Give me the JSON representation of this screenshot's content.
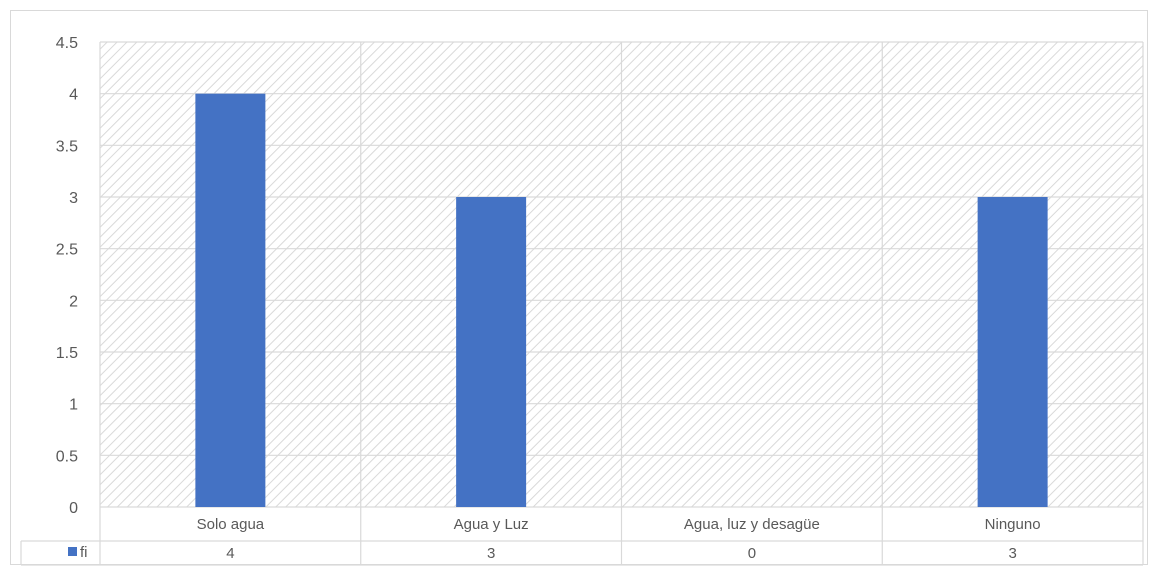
{
  "chart_data": {
    "type": "bar",
    "categories": [
      "Solo agua",
      "Agua y Luz",
      "Agua, luz y desagüe",
      "Ninguno"
    ],
    "series": [
      {
        "name": "fi",
        "values": [
          4,
          3,
          0,
          3
        ],
        "color": "#4472c4"
      }
    ],
    "title": "",
    "xlabel": "",
    "ylabel": "",
    "ylim": [
      0,
      4.5
    ],
    "yticks": [
      "0",
      "0.5",
      "1",
      "1.5",
      "2",
      "2.5",
      "3",
      "3.5",
      "4",
      "4.5"
    ],
    "grid": true,
    "background_pattern": "diagonal-hatch",
    "data_table": {
      "legend_key": "fi",
      "values": [
        "4",
        "3",
        "0",
        "3"
      ]
    }
  },
  "colors": {
    "bar": "#4472c4",
    "grid": "#d9d9d9",
    "text": "#595959",
    "hatch": "#d9d9d9"
  }
}
